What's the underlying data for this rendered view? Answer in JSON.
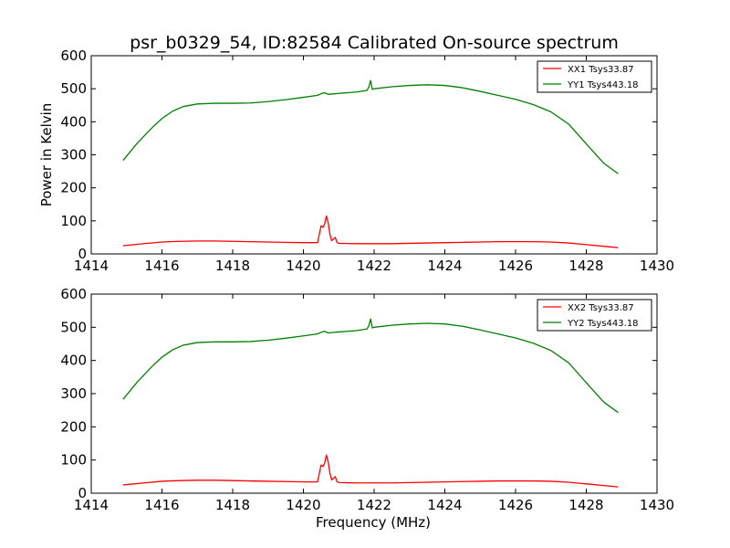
{
  "title": "psr_b0329_54, ID:82584 Calibrated On-source spectrum",
  "colors": {
    "xx": "#ff0000",
    "yy": "#008000"
  },
  "chart_data": [
    {
      "type": "line",
      "ylabel": "Power in Kelvin",
      "xlabel": "",
      "xlim": [
        1414,
        1430
      ],
      "ylim": [
        0,
        600
      ],
      "xticks": [
        1414,
        1416,
        1418,
        1420,
        1422,
        1424,
        1426,
        1428,
        1430
      ],
      "yticks": [
        0,
        100,
        200,
        300,
        400,
        500,
        600
      ],
      "legend_position": "top-right",
      "series": [
        {
          "name": "XX1 Tsys33.87",
          "color": "#ff0000",
          "x": [
            1414.9,
            1415.5,
            1416,
            1416.5,
            1417,
            1417.5,
            1418,
            1418.5,
            1419,
            1419.5,
            1420,
            1420.4,
            1420.5,
            1420.55,
            1420.6,
            1420.65,
            1420.7,
            1420.75,
            1420.8,
            1420.9,
            1420.95,
            1421,
            1421.5,
            1422,
            1422.5,
            1423,
            1423.5,
            1424,
            1424.5,
            1425,
            1425.5,
            1426,
            1426.5,
            1427,
            1427.5,
            1428,
            1428.5,
            1428.9
          ],
          "values": [
            25,
            31,
            36,
            38,
            39,
            39,
            38,
            37,
            36,
            35,
            34,
            34,
            85,
            80,
            90,
            115,
            95,
            60,
            40,
            50,
            35,
            32,
            31,
            31,
            31,
            32,
            33,
            34,
            35,
            36,
            37,
            37,
            37,
            36,
            33,
            28,
            23,
            19
          ]
        },
        {
          "name": "YY1 Tsys443.18",
          "color": "#008000",
          "x": [
            1414.9,
            1415.3,
            1415.7,
            1416,
            1416.3,
            1416.6,
            1417,
            1417.5,
            1418,
            1418.5,
            1419,
            1419.5,
            1420,
            1420.4,
            1420.5,
            1420.6,
            1420.7,
            1420.8,
            1421,
            1421.5,
            1421.8,
            1421.85,
            1421.9,
            1421.95,
            1422,
            1422.5,
            1423,
            1423.5,
            1424,
            1424.5,
            1425,
            1425.5,
            1426,
            1426.5,
            1427,
            1427.5,
            1428,
            1428.5,
            1428.9
          ],
          "values": [
            283,
            335,
            380,
            410,
            432,
            446,
            454,
            456,
            456,
            457,
            461,
            467,
            474,
            480,
            485,
            488,
            483,
            484,
            486,
            490,
            495,
            505,
            525,
            498,
            500,
            506,
            510,
            512,
            510,
            503,
            492,
            480,
            468,
            452,
            430,
            393,
            333,
            274,
            243
          ]
        }
      ]
    },
    {
      "type": "line",
      "ylabel": "",
      "xlabel": "Frequency (MHz)",
      "xlim": [
        1414,
        1430
      ],
      "ylim": [
        0,
        600
      ],
      "xticks": [
        1414,
        1416,
        1418,
        1420,
        1422,
        1424,
        1426,
        1428,
        1430
      ],
      "yticks": [
        0,
        100,
        200,
        300,
        400,
        500,
        600
      ],
      "legend_position": "top-right",
      "series": [
        {
          "name": "XX2 Tsys33.87",
          "color": "#ff0000",
          "x": [
            1414.9,
            1415.5,
            1416,
            1416.5,
            1417,
            1417.5,
            1418,
            1418.5,
            1419,
            1419.5,
            1420,
            1420.4,
            1420.5,
            1420.55,
            1420.6,
            1420.65,
            1420.7,
            1420.75,
            1420.8,
            1420.9,
            1420.95,
            1421,
            1421.5,
            1422,
            1422.5,
            1423,
            1423.5,
            1424,
            1424.5,
            1425,
            1425.5,
            1426,
            1426.5,
            1427,
            1427.5,
            1428,
            1428.5,
            1428.9
          ],
          "values": [
            25,
            31,
            36,
            38,
            39,
            39,
            38,
            37,
            36,
            35,
            34,
            34,
            85,
            80,
            90,
            115,
            95,
            60,
            40,
            50,
            35,
            32,
            31,
            31,
            31,
            32,
            33,
            34,
            35,
            36,
            37,
            37,
            37,
            36,
            33,
            28,
            23,
            19
          ]
        },
        {
          "name": "YY2 Tsys443.18",
          "color": "#008000",
          "x": [
            1414.9,
            1415.3,
            1415.7,
            1416,
            1416.3,
            1416.6,
            1417,
            1417.5,
            1418,
            1418.5,
            1419,
            1419.5,
            1420,
            1420.4,
            1420.5,
            1420.6,
            1420.7,
            1420.8,
            1421,
            1421.5,
            1421.8,
            1421.85,
            1421.9,
            1421.95,
            1422,
            1422.5,
            1423,
            1423.5,
            1424,
            1424.5,
            1425,
            1425.5,
            1426,
            1426.5,
            1427,
            1427.5,
            1428,
            1428.5,
            1428.9
          ],
          "values": [
            283,
            335,
            380,
            410,
            432,
            446,
            454,
            456,
            456,
            457,
            461,
            467,
            474,
            480,
            485,
            488,
            483,
            484,
            486,
            490,
            495,
            505,
            525,
            498,
            500,
            506,
            510,
            512,
            510,
            503,
            492,
            480,
            468,
            452,
            430,
            393,
            333,
            274,
            243
          ]
        }
      ]
    }
  ]
}
